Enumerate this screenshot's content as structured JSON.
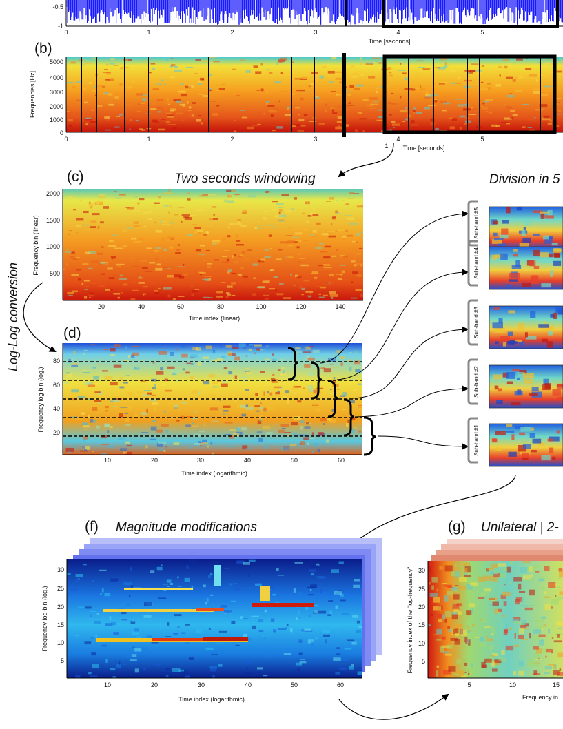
{
  "panel_a": {
    "x_ticks": [
      "0",
      "1",
      "2",
      "3",
      "4",
      "5"
    ],
    "y_ticks": [
      "-0.5",
      "-1"
    ],
    "xlabel": "Time [seconds]"
  },
  "panel_b": {
    "letter": "(b)",
    "ylabel": "Frequencies [Hz]",
    "y_ticks": [
      "5000",
      "4000",
      "3000",
      "2000",
      "1000",
      "0"
    ],
    "x_ticks": [
      "0",
      "1",
      "2",
      "3",
      "4",
      "5"
    ],
    "xlabel": "Time [seconds]",
    "marker": "1"
  },
  "panel_c": {
    "letter": "(c)",
    "title": "Two seconds windowing",
    "ylabel": "Frequency bin (linear)",
    "y_ticks": [
      "2000",
      "1500",
      "1000",
      "500"
    ],
    "x_ticks": [
      "20",
      "40",
      "60",
      "80",
      "100",
      "120",
      "140"
    ],
    "xlabel": "Time index (linear)"
  },
  "side_label": "Log-Log conversion",
  "panel_d": {
    "letter": "(d)",
    "ylabel": "Frequency log-bin (log.)",
    "y_ticks": [
      "80",
      "60",
      "40",
      "20"
    ],
    "x_ticks": [
      "10",
      "20",
      "30",
      "40",
      "50",
      "60"
    ],
    "xlabel": "Time index (logarithmic)"
  },
  "panel_e": {
    "title": "Division in 5",
    "bands": [
      "Sub-band #5",
      "Sub-band #4",
      "Sub-band #3",
      "Sub-band #2",
      "Sub-band #1"
    ]
  },
  "panel_f": {
    "letter": "(f)",
    "title": "Magnitude modifications",
    "ylabel": "Frequency log-bin (log.)",
    "y_ticks": [
      "30",
      "25",
      "20",
      "15",
      "10",
      "5"
    ],
    "x_ticks": [
      "10",
      "20",
      "30",
      "40",
      "50",
      "60"
    ],
    "xlabel": "Time index (logarithmic)"
  },
  "panel_g": {
    "letter": "(g)",
    "title": "Unilateral | 2-",
    "ylabel": "Frequency index of the \"log-frequency\"",
    "y_ticks": [
      "30",
      "25",
      "20",
      "15",
      "10",
      "5"
    ],
    "x_ticks": [
      "5",
      "10",
      "15"
    ],
    "xlabel": "Frequency in"
  },
  "colors": {
    "waveform": "#1a1aff",
    "spectro_hot": "#d41a0a",
    "spectro_cool": "#1e90ff"
  }
}
